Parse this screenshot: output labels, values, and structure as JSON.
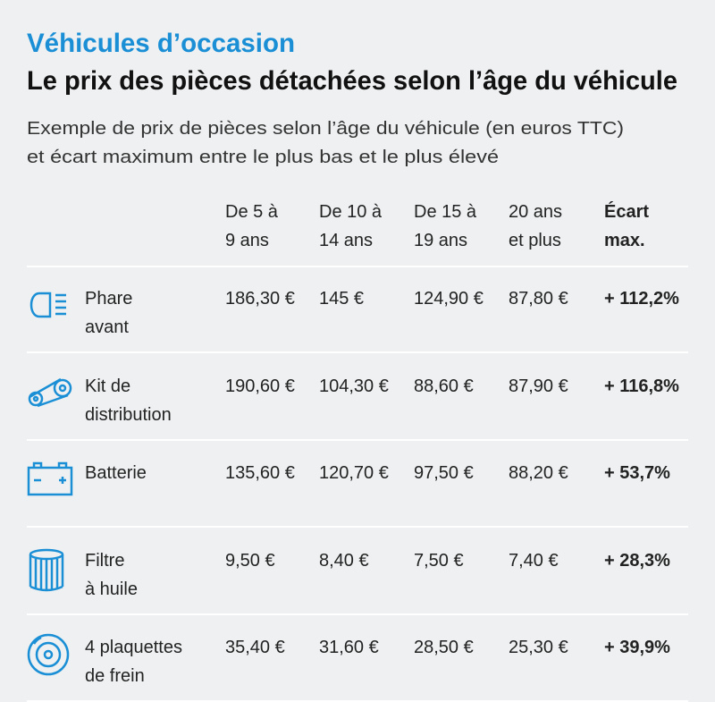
{
  "header": {
    "kicker": "Véhicules d’occasion",
    "title": "Le prix des pièces détachées selon l’âge du véhicule",
    "subtitle": [
      "Exemple de prix de pièces selon l’âge du véhicule (en euros TTC)",
      "et écart maximum entre le plus bas et le plus élevé"
    ]
  },
  "table": {
    "columns": [
      [
        "De 5 à",
        "9 ans"
      ],
      [
        "De 10 à",
        "14 ans"
      ],
      [
        "De 15 à",
        "19 ans"
      ],
      [
        "20 ans",
        "et plus"
      ],
      [
        "Écart",
        "max."
      ]
    ],
    "rows": [
      {
        "label": [
          "Phare",
          "avant"
        ],
        "values": [
          "186,30 €",
          "145 €",
          "124,90 €",
          "87,80 €",
          "+ 112,2%"
        ]
      },
      {
        "label": [
          "Kit de",
          "distribution"
        ],
        "values": [
          "190,60 €",
          "104,30 €",
          "88,60 €",
          "87,90 €",
          "+ 116,8%"
        ]
      },
      {
        "label": [
          "Batterie"
        ],
        "values": [
          "135,60 €",
          "120,70 €",
          "97,50 €",
          "88,20 €",
          "+ 53,7%"
        ]
      },
      {
        "label": [
          "Filtre",
          "à huile"
        ],
        "values": [
          "9,50 €",
          "8,40 €",
          "7,50 €",
          "7,40 €",
          "+ 28,3%"
        ]
      },
      {
        "label": [
          "4 plaquettes",
          "de frein"
        ],
        "values": [
          "35,40 €",
          "31,60 €",
          "28,50 €",
          "25,30 €",
          "+ 39,9%"
        ]
      }
    ]
  }
}
